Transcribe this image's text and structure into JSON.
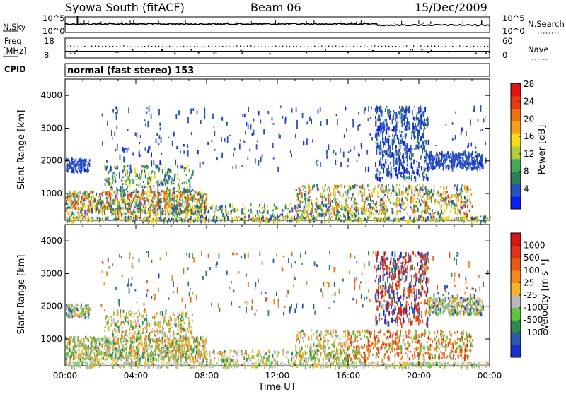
{
  "header": {
    "station": "Syowa South (fitACF)",
    "beam": "Beam 06",
    "date": "15/Dec/2009"
  },
  "noise_panel": {
    "left_label": "N.Sky",
    "right_label": "N.Search",
    "ticks_left": [
      "10^5",
      "10^0"
    ],
    "ticks_right": [
      "10^5",
      "10^0"
    ]
  },
  "freq_panel": {
    "left_label_1": "Freq.",
    "left_label_2": "[MHz]",
    "right_label": "Nave",
    "ticks_left": [
      "18",
      "8"
    ],
    "ticks_right": [
      "60",
      "0"
    ]
  },
  "cpid": {
    "label": "CPID",
    "value": "normal (fast stereo) 153"
  },
  "chart_data": [
    {
      "type": "heatmap",
      "name": "power",
      "ylabel": "Slant Range [km]",
      "y_ticks": [
        1000,
        2000,
        3000,
        4000
      ],
      "ylim": [
        180,
        4500
      ],
      "x_hours": [
        0,
        24
      ],
      "colorbar": {
        "label": "Power [dB]",
        "ticks": [
          "4",
          "8",
          "12",
          "16",
          "20",
          "24",
          "28"
        ],
        "colors": [
          "#0a1ef5",
          "#2850c0",
          "#2e7e5a",
          "#46a858",
          "#b4cc3a",
          "#f4dc1a",
          "#f4a21e",
          "#f07014",
          "#e83a14",
          "#e01414"
        ]
      }
    },
    {
      "type": "heatmap",
      "name": "velocity",
      "ylabel": "Slant Range [km]",
      "y_ticks": [
        1000,
        2000,
        3000,
        4000
      ],
      "ylim": [
        180,
        4500
      ],
      "x_hours": [
        0,
        24
      ],
      "colorbar": {
        "label": "Velocity [m s⁻¹]",
        "ticks": [
          "1000",
          "500",
          "100",
          "25",
          "-25",
          "-100",
          "-500",
          "-1000"
        ],
        "colors": [
          "#1430d0",
          "#2a5ab0",
          "#2e8a50",
          "#5ac83a",
          "#b8b8b8",
          "#f4b428",
          "#f08a1e",
          "#e85a14",
          "#e03214",
          "#d81414"
        ]
      }
    }
  ],
  "x_axis": {
    "ticks": [
      "00:00",
      "04:00",
      "08:00",
      "12:00",
      "16:00",
      "20:00",
      "00:00"
    ],
    "label": "Time UT"
  }
}
